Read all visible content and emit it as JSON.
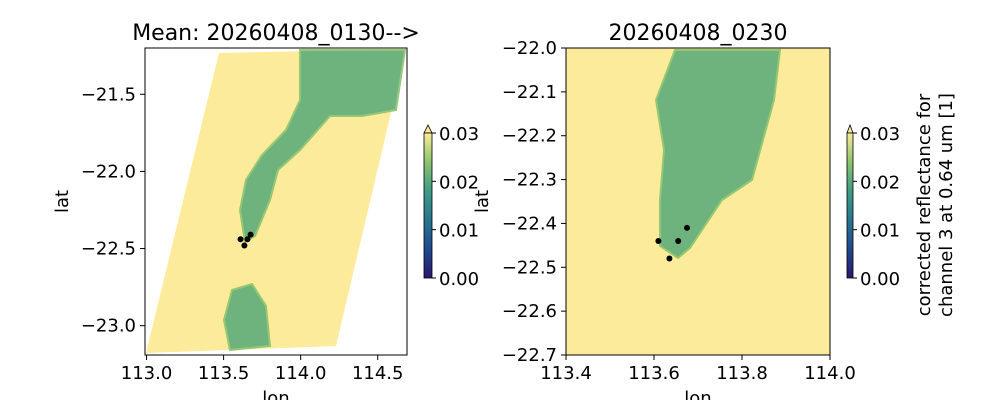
{
  "chart_data": [
    {
      "type": "heatmap",
      "title": "Mean: 20260408_0130-->",
      "xlabel": "lon",
      "ylabel": "lat",
      "xlim": [
        112.99,
        114.69
      ],
      "ylim": [
        -23.19,
        -21.2
      ],
      "xticks": [
        113.0,
        113.5,
        114.0,
        114.5
      ],
      "xtick_labels": [
        "113.0",
        "113.5",
        "114.0",
        "114.5"
      ],
      "yticks": [
        -21.5,
        -22.0,
        -22.5,
        -23.0
      ],
      "ytick_labels": [
        "−21.5",
        "−22.0",
        "−22.5",
        "−23.0"
      ],
      "points": [
        [
          113.61,
          -22.44
        ],
        [
          113.655,
          -22.44
        ],
        [
          113.675,
          -22.41
        ],
        [
          113.635,
          -22.48
        ]
      ],
      "colorbar": {
        "min": 0.0,
        "max": 0.03,
        "ticks": [
          0.0,
          0.01,
          0.02,
          0.03
        ],
        "tick_labels": [
          "0.00",
          "0.01",
          "0.02",
          "0.03"
        ],
        "extend": "max",
        "label": ""
      }
    },
    {
      "type": "heatmap",
      "title": "20260408_0230",
      "xlabel": "lon",
      "ylabel": "lat",
      "xlim": [
        113.4,
        114.0
      ],
      "ylim": [
        -22.7,
        -22.0
      ],
      "xticks": [
        113.4,
        113.6,
        113.8,
        114.0
      ],
      "xtick_labels": [
        "113.4",
        "113.6",
        "113.8",
        "114.0"
      ],
      "yticks": [
        -22.0,
        -22.1,
        -22.2,
        -22.3,
        -22.4,
        -22.5,
        -22.6,
        -22.7
      ],
      "ytick_labels": [
        "−22.0",
        "−22.1",
        "−22.2",
        "−22.3",
        "−22.4",
        "−22.5",
        "−22.6",
        "−22.7"
      ],
      "points": [
        [
          113.61,
          -22.44
        ],
        [
          113.655,
          -22.44
        ],
        [
          113.675,
          -22.41
        ],
        [
          113.635,
          -22.48
        ]
      ],
      "colorbar": {
        "min": 0.0,
        "max": 0.03,
        "ticks": [
          0.0,
          0.01,
          0.02,
          0.03
        ],
        "tick_labels": [
          "0.00",
          "0.01",
          "0.02",
          "0.03"
        ],
        "extend": "max",
        "label_lines": [
          "corrected reflectance for",
          "channel 3 at 0.64 um [1]"
        ]
      }
    }
  ],
  "colors": {
    "low": "#2a186c",
    "mid": "#2f8a8a",
    "green": "#5fae7a",
    "high": "#fbeb9a",
    "point": "#000000"
  }
}
